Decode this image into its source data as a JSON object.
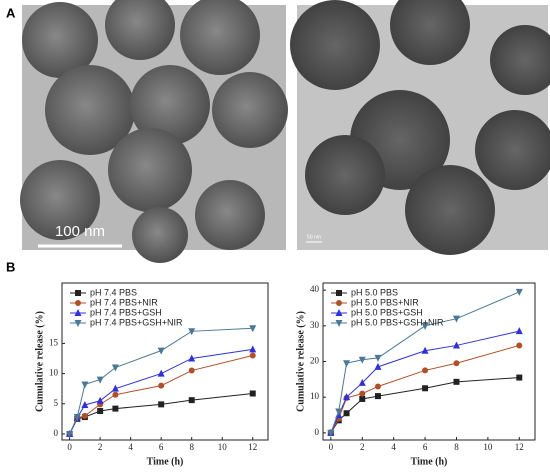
{
  "panel_labels": {
    "a": "A",
    "b": "B"
  },
  "images": {
    "left_scale": "100 nm",
    "right_scale": "50 nm"
  },
  "chart_data": [
    {
      "type": "line",
      "x_label": "Time (h)",
      "y_label": "Cumulative release (%)",
      "xlim": [
        -0.5,
        13
      ],
      "xticks": [
        0,
        2,
        4,
        6,
        8,
        10,
        12
      ],
      "ylim": [
        -1,
        25
      ],
      "yticks": [
        0,
        5,
        10,
        15
      ],
      "legend": "upper-left",
      "x": [
        0,
        0.5,
        1,
        2,
        3,
        6,
        8,
        12
      ],
      "series": [
        {
          "name": "pH 7.4 PBS",
          "color": "#222222",
          "marker": "square",
          "values": [
            0,
            2.5,
            2.8,
            3.8,
            4.2,
            4.9,
            5.6,
            6.7
          ]
        },
        {
          "name": "pH 7.4 PBS+NIR",
          "color": "#b0502a",
          "marker": "circle",
          "values": [
            0,
            2.6,
            3,
            4.9,
            6.5,
            8,
            10.5,
            13
          ]
        },
        {
          "name": "pH 7.4 PBS+GSH",
          "color": "#3030d8",
          "marker": "triangle",
          "values": [
            0,
            2.7,
            4.8,
            5.5,
            7.5,
            10,
            12.5,
            14
          ]
        },
        {
          "name": "pH 7.4 PBS+GSH+NIR",
          "color": "#4a7896",
          "marker": "triangle-down",
          "values": [
            0,
            2.8,
            8.2,
            9,
            11,
            13.8,
            17,
            17.5
          ]
        }
      ]
    },
    {
      "type": "line",
      "x_label": "Time (h)",
      "y_label": "Cumulative release (%)",
      "xlim": [
        -0.5,
        13
      ],
      "xticks": [
        0,
        2,
        4,
        6,
        8,
        10,
        12
      ],
      "ylim": [
        -2,
        42
      ],
      "yticks": [
        0,
        10,
        20,
        30,
        40
      ],
      "legend": "upper-left",
      "x": [
        0,
        0.5,
        1,
        2,
        3,
        6,
        8,
        12
      ],
      "series": [
        {
          "name": "pH 5.0 PBS",
          "color": "#222222",
          "marker": "square",
          "values": [
            0,
            3.5,
            5.5,
            9.5,
            10.3,
            12.5,
            14.3,
            15.5
          ]
        },
        {
          "name": "pH 5.0 PBS+NIR",
          "color": "#b0502a",
          "marker": "circle",
          "values": [
            0,
            4,
            9.8,
            11,
            13,
            17.5,
            19.5,
            24.5
          ]
        },
        {
          "name": "pH 5.0 PBS+GSH",
          "color": "#3030d8",
          "marker": "triangle",
          "values": [
            0,
            5,
            10,
            14,
            18.5,
            23,
            24.5,
            28.5
          ]
        },
        {
          "name": "pH 5.0 PBS+GSH+NIR",
          "color": "#4a7896",
          "marker": "triangle-down",
          "values": [
            0,
            6,
            19.5,
            20.5,
            21,
            30,
            32,
            39.5
          ]
        }
      ]
    }
  ]
}
